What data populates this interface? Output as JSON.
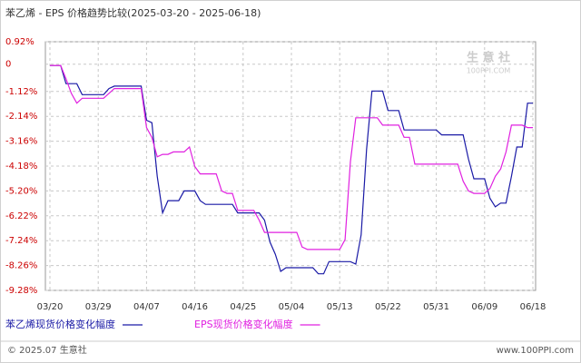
{
  "chart_data": {
    "type": "line",
    "title": "苯乙烯 - EPS 价格趋势比较(2025-03-20 - 2025-06-18)",
    "categories": [
      "03/20",
      null,
      null,
      null,
      null,
      null,
      null,
      null,
      null,
      "03/29",
      null,
      null,
      null,
      null,
      null,
      null,
      null,
      null,
      "04/07",
      null,
      null,
      null,
      null,
      null,
      null,
      null,
      null,
      "04/16",
      null,
      null,
      null,
      null,
      null,
      null,
      null,
      null,
      "04/25",
      null,
      null,
      null,
      null,
      null,
      null,
      null,
      null,
      "05/04",
      null,
      null,
      null,
      null,
      null,
      null,
      null,
      null,
      "05/13",
      null,
      null,
      null,
      null,
      null,
      null,
      null,
      null,
      "05/22",
      null,
      null,
      null,
      null,
      null,
      null,
      null,
      null,
      "05/31",
      null,
      null,
      null,
      null,
      null,
      null,
      null,
      null,
      "06/09",
      null,
      null,
      null,
      null,
      null,
      null,
      null,
      null,
      "06/18"
    ],
    "series": [
      {
        "name": "苯乙烯现货价格变化幅度",
        "color": "#1a1aa6",
        "values": [
          -0.05,
          -0.05,
          -0.05,
          -0.8,
          -0.8,
          -0.8,
          -1.25,
          -1.25,
          -1.25,
          -1.25,
          -1.25,
          -1.0,
          -0.9,
          -0.9,
          -0.9,
          -0.9,
          -0.9,
          -0.9,
          -2.3,
          -2.4,
          -4.6,
          -6.1,
          -5.6,
          -5.6,
          -5.6,
          -5.2,
          -5.2,
          -5.2,
          -5.6,
          -5.75,
          -5.75,
          -5.75,
          -5.75,
          -5.75,
          -5.75,
          -6.1,
          -6.1,
          -6.1,
          -6.1,
          -6.1,
          -6.4,
          -7.3,
          -7.8,
          -8.5,
          -8.35,
          -8.35,
          -8.35,
          -8.35,
          -8.35,
          -8.35,
          -8.6,
          -8.6,
          -8.1,
          -8.1,
          -8.1,
          -8.1,
          -8.1,
          -8.2,
          -7.0,
          -3.5,
          -1.1,
          -1.1,
          -1.1,
          -1.9,
          -1.9,
          -1.9,
          -2.7,
          -2.7,
          -2.7,
          -2.7,
          -2.7,
          -2.7,
          -2.7,
          -2.9,
          -2.9,
          -2.9,
          -2.9,
          -2.9,
          -3.9,
          -4.7,
          -4.7,
          -4.7,
          -5.5,
          -5.85,
          -5.7,
          -5.7,
          -4.6,
          -3.4,
          -3.4,
          -1.6,
          -1.6
        ]
      },
      {
        "name": "EPS现货价格变化幅度",
        "color": "#e020e0",
        "values": [
          -0.05,
          -0.05,
          -0.05,
          -0.6,
          -1.2,
          -1.6,
          -1.4,
          -1.4,
          -1.4,
          -1.4,
          -1.4,
          -1.2,
          -1.0,
          -1.0,
          -1.0,
          -1.0,
          -1.0,
          -1.0,
          -2.6,
          -3.0,
          -3.8,
          -3.7,
          -3.7,
          -3.6,
          -3.6,
          -3.6,
          -3.4,
          -4.2,
          -4.5,
          -4.5,
          -4.5,
          -4.5,
          -5.2,
          -5.3,
          -5.3,
          -6.0,
          -6.0,
          -6.0,
          -6.0,
          -6.4,
          -6.9,
          -6.9,
          -6.9,
          -6.9,
          -6.9,
          -6.9,
          -6.9,
          -7.5,
          -7.6,
          -7.6,
          -7.6,
          -7.6,
          -7.6,
          -7.6,
          -7.6,
          -7.2,
          -4.0,
          -2.2,
          -2.2,
          -2.2,
          -2.2,
          -2.2,
          -2.5,
          -2.5,
          -2.5,
          -2.5,
          -3.0,
          -3.0,
          -4.1,
          -4.1,
          -4.1,
          -4.1,
          -4.1,
          -4.1,
          -4.1,
          -4.1,
          -4.1,
          -4.8,
          -5.2,
          -5.3,
          -5.3,
          -5.3,
          -5.1,
          -4.6,
          -4.3,
          -3.6,
          -2.5,
          -2.5,
          -2.5,
          -2.6,
          -2.6
        ]
      }
    ],
    "ylim": [
      -9.28,
      0.92
    ],
    "yticks": [
      {
        "value": 0.92,
        "label": "0.92%"
      },
      0,
      {
        "value": -1.12,
        "label": "-1.12%"
      },
      {
        "value": -2.14,
        "label": "-2.14%"
      },
      {
        "value": -3.16,
        "label": "-3.16%"
      },
      {
        "value": -4.18,
        "label": "-4.18%"
      },
      {
        "value": -5.2,
        "label": "-5.20%"
      },
      {
        "value": -6.22,
        "label": "-6.22%"
      },
      {
        "value": -7.24,
        "label": "-7.24%"
      },
      {
        "value": -8.26,
        "label": "-8.26%"
      },
      {
        "value": -9.28,
        "label": "-9.28%"
      }
    ],
    "grid": true,
    "watermark": "生 意 社",
    "watermark_url": "100PPI.COM",
    "footer_left": "© 2025.07 生意社",
    "footer_right": "www.100PPI.com"
  }
}
